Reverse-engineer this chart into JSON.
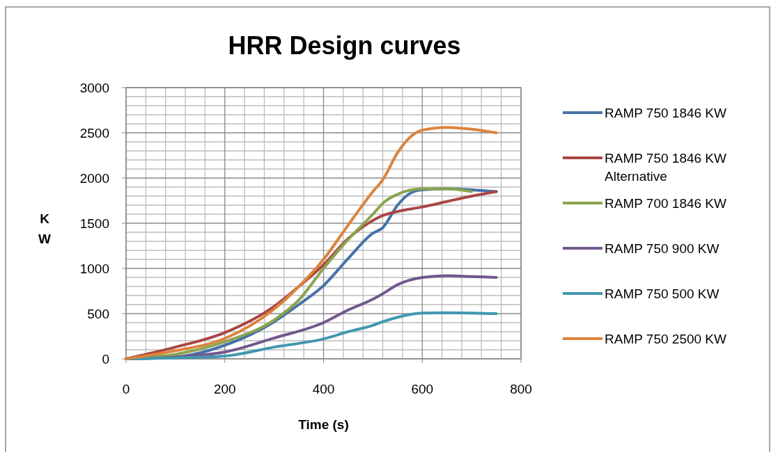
{
  "chart_data": {
    "type": "line",
    "title": "HRR Design curves",
    "xlabel": "Time (s)",
    "ylabel": "KW",
    "xlim": [
      0,
      800
    ],
    "xticks": [
      0,
      200,
      400,
      600,
      800
    ],
    "ylim": [
      0,
      3000
    ],
    "yticks": [
      0,
      500,
      1000,
      1500,
      2000,
      2500,
      3000
    ],
    "grid": true,
    "legend": "right",
    "line_style": "solid",
    "series": [
      {
        "name": "RAMP 750 1846 KW",
        "color": "#4572a7",
        "x": [
          0,
          100,
          200,
          300,
          350,
          400,
          450,
          500,
          520,
          550,
          575,
          600,
          650,
          700,
          750
        ],
        "values": [
          0,
          20,
          150,
          410,
          600,
          810,
          1110,
          1390,
          1450,
          1700,
          1830,
          1870,
          1880,
          1870,
          1850
        ]
      },
      {
        "name": "RAMP 750 1846 KW Alternative",
        "color": "#aa4643",
        "x": [
          0,
          100,
          200,
          300,
          350,
          400,
          450,
          500,
          520,
          550,
          600,
          650,
          700,
          750
        ],
        "values": [
          0,
          130,
          290,
          580,
          800,
          1040,
          1330,
          1530,
          1585,
          1630,
          1680,
          1740,
          1800,
          1850
        ]
      },
      {
        "name": "RAMP 700 1846 KW",
        "color": "#89a54e",
        "x": [
          0,
          100,
          200,
          300,
          350,
          400,
          450,
          500,
          520,
          550,
          600,
          650,
          700
        ],
        "values": [
          0,
          50,
          190,
          430,
          650,
          1000,
          1320,
          1600,
          1720,
          1820,
          1880,
          1880,
          1850
        ]
      },
      {
        "name": "RAMP 750 900 KW",
        "color": "#71588f",
        "x": [
          0,
          100,
          200,
          300,
          400,
          450,
          500,
          520,
          550,
          600,
          650,
          700,
          750
        ],
        "values": [
          0,
          20,
          75,
          230,
          400,
          540,
          660,
          720,
          820,
          900,
          920,
          910,
          900
        ]
      },
      {
        "name": "RAMP 750 500 KW",
        "color": "#4198af",
        "x": [
          0,
          100,
          200,
          300,
          400,
          450,
          500,
          520,
          550,
          600,
          650,
          700,
          750
        ],
        "values": [
          0,
          10,
          30,
          130,
          220,
          300,
          370,
          410,
          460,
          505,
          510,
          505,
          500
        ]
      },
      {
        "name": "RAMP 750 2500 KW",
        "color": "#db843d",
        "x": [
          0,
          100,
          200,
          300,
          350,
          400,
          450,
          500,
          520,
          550,
          575,
          600,
          650,
          700,
          750
        ],
        "values": [
          0,
          90,
          225,
          550,
          800,
          1100,
          1480,
          1850,
          1980,
          2280,
          2450,
          2530,
          2560,
          2540,
          2500
        ]
      }
    ]
  }
}
